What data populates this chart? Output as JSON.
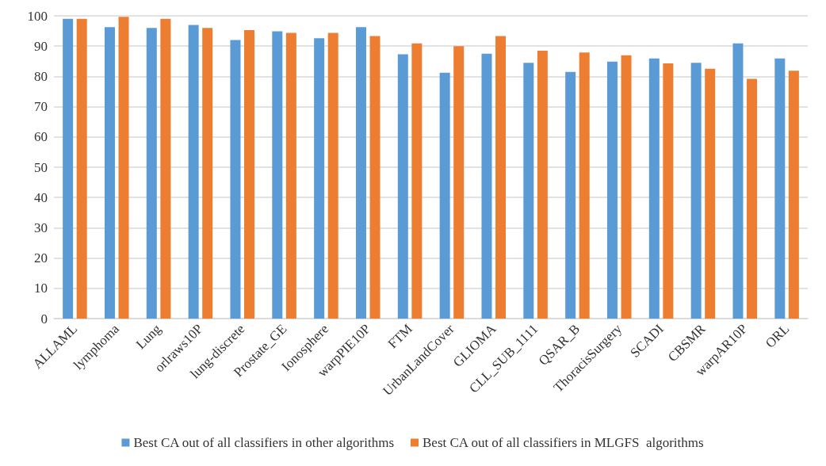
{
  "chart_data": {
    "type": "bar",
    "categories": [
      "ALLAML",
      "lymphoma",
      "Lung",
      "orlraws10P",
      "lung-discrete",
      "Prostate_GE",
      "Ionosphere",
      "warpPIE10P",
      "FTM",
      "UrbanLandCover",
      "GLIOMA",
      "CLL_SUB_1111",
      "QSAR_B",
      "ThoracisSurgery",
      "SCADI",
      "CBSMR",
      "warpAR10P",
      "ORL"
    ],
    "series": [
      {
        "name": "Best CA out of all classifiers in other algorithms",
        "color": "#5b9bd5",
        "values": [
          99.0,
          96.3,
          96.0,
          97.0,
          92.0,
          94.9,
          92.6,
          96.3,
          87.3,
          81.2,
          87.5,
          84.5,
          81.5,
          84.9,
          85.9,
          84.5,
          90.9,
          85.9
        ]
      },
      {
        "name": "Best CA out of all classifiers in MLGFS  algorithms",
        "color": "#ed7d31",
        "values": [
          99.0,
          99.7,
          99.0,
          96.0,
          95.3,
          94.4,
          94.4,
          93.3,
          90.9,
          90.0,
          93.3,
          88.5,
          87.9,
          87.0,
          84.3,
          82.5,
          79.2,
          81.9
        ]
      }
    ],
    "ylim": [
      0,
      100
    ],
    "yticks": [
      0,
      10,
      20,
      30,
      40,
      50,
      60,
      70,
      80,
      90,
      100
    ],
    "grid": "y",
    "legend": "bottom"
  }
}
